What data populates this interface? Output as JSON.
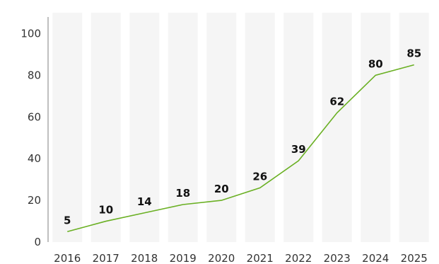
{
  "chart_data": {
    "type": "line",
    "title": "",
    "xlabel": "",
    "ylabel": "",
    "categories": [
      "2016",
      "2017",
      "2018",
      "2019",
      "2020",
      "2021",
      "2022",
      "2023",
      "2024",
      "2025"
    ],
    "series": [
      {
        "values": [
          5,
          10,
          14,
          18,
          20,
          26,
          39,
          62,
          80,
          85
        ],
        "color": "#6ab023"
      }
    ],
    "ylim": [
      0,
      110
    ],
    "yticks": [
      0,
      20,
      40,
      60,
      80,
      100
    ],
    "grid": false,
    "column_band_color": "#f5f5f5",
    "axis_color": "#aaaaaa"
  }
}
